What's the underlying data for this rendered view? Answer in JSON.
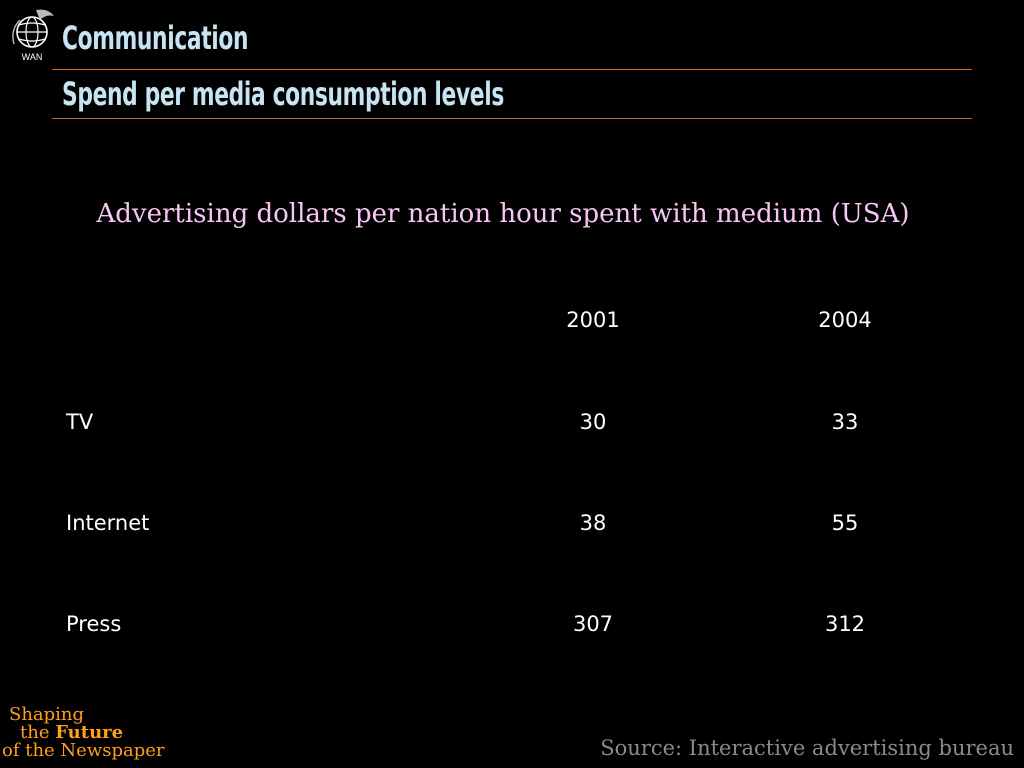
{
  "logo": {
    "text": "WAN",
    "icon": "globe-icon"
  },
  "header": {
    "title": "Communication",
    "subtitle": "Spend per media consumption levels"
  },
  "table": {
    "caption": "Advertising dollars per nation hour spent with medium (USA)",
    "columns": [
      "2001",
      "2004"
    ],
    "rows": [
      {
        "label": "TV",
        "values": [
          "30",
          "33"
        ]
      },
      {
        "label": "Internet",
        "values": [
          "38",
          "55"
        ]
      },
      {
        "label": "Press",
        "values": [
          "307",
          "312"
        ]
      }
    ]
  },
  "footer": {
    "brand_line1": "Shaping",
    "brand_line2_prefix": "the",
    "brand_line2_strong": "Future",
    "brand_line3": "of the Newspaper",
    "source": "Source: Interactive advertising bureau"
  },
  "colors": {
    "background": "#000000",
    "heading": "#c6e4f2",
    "rule": "#d2691e",
    "caption": "#f7c6f4",
    "brand": "#ff9f1a",
    "source": "#8a8a8a"
  }
}
